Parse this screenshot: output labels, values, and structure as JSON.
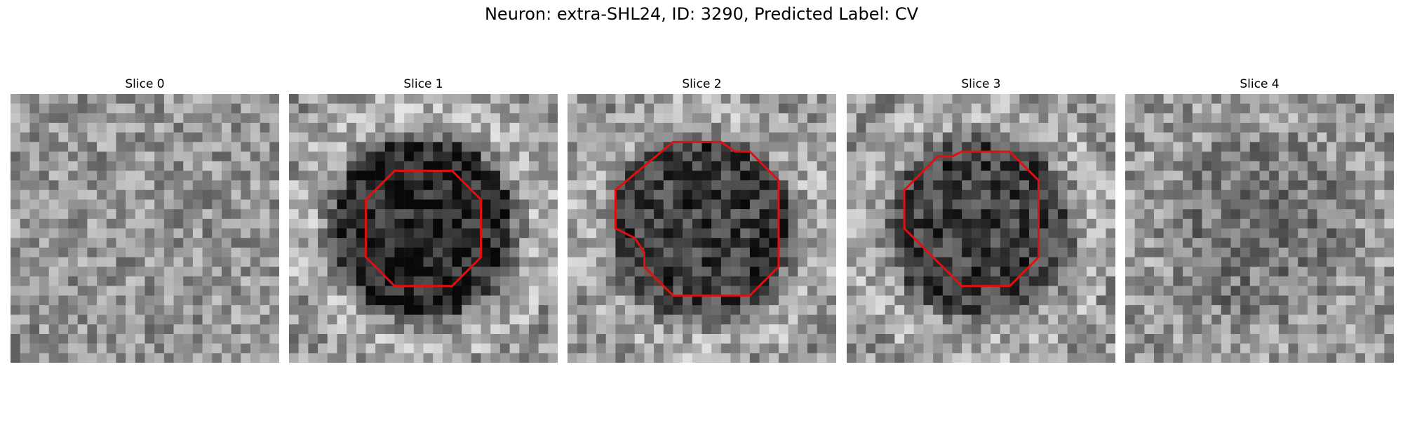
{
  "figure": {
    "title": "Neuron: extra-SHL24, ID: 3290, Predicted Label: CV"
  },
  "panels": [
    {
      "title": "Slice 0",
      "blob": 0.0,
      "contour": []
    },
    {
      "title": "Slice 1",
      "blob": 0.95,
      "contour": [
        [
          11,
          8
        ],
        [
          17,
          8
        ],
        [
          20,
          11
        ],
        [
          20,
          17
        ],
        [
          17,
          20
        ],
        [
          11,
          20
        ],
        [
          8,
          17
        ],
        [
          8,
          11
        ]
      ]
    },
    {
      "title": "Slice 2",
      "blob": 0.75,
      "contour": [
        [
          11,
          5
        ],
        [
          16,
          5
        ],
        [
          17.5,
          6
        ],
        [
          19,
          6
        ],
        [
          22,
          9
        ],
        [
          22,
          18
        ],
        [
          19,
          21
        ],
        [
          11,
          21
        ],
        [
          8,
          18
        ],
        [
          8,
          16.5
        ],
        [
          7,
          15
        ],
        [
          5,
          14
        ],
        [
          5,
          10
        ]
      ]
    },
    {
      "title": "Slice 3",
      "blob": 0.75,
      "contour": [
        [
          12,
          6
        ],
        [
          17,
          6
        ],
        [
          20,
          9
        ],
        [
          20,
          17
        ],
        [
          17,
          20
        ],
        [
          12,
          20
        ],
        [
          6,
          14
        ],
        [
          6,
          10
        ],
        [
          9.5,
          6.5
        ],
        [
          11,
          6.5
        ]
      ]
    },
    {
      "title": "Slice 4",
      "blob": 0.25,
      "contour": []
    }
  ],
  "colors": {
    "contour": "#e01010"
  }
}
